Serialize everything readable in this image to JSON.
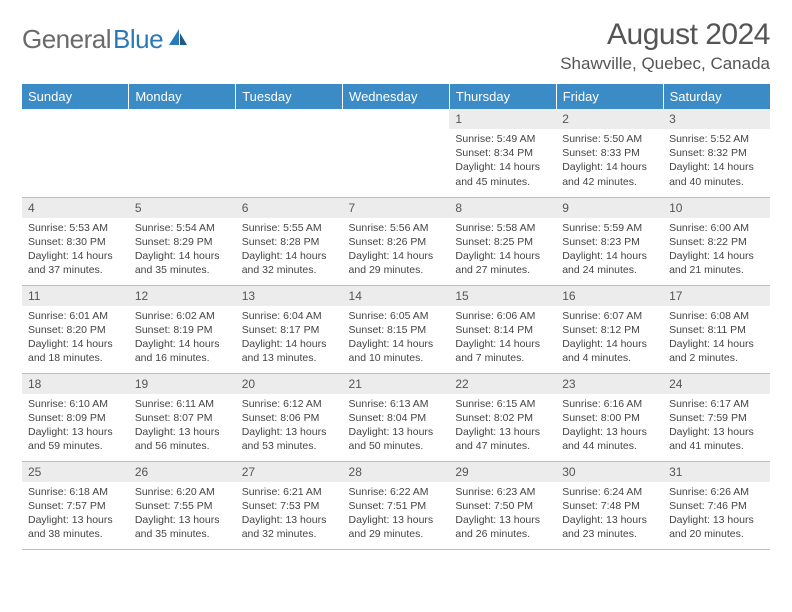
{
  "brand": {
    "name_gray": "General",
    "name_blue": "Blue"
  },
  "title": "August 2024",
  "location": "Shawville, Quebec, Canada",
  "colors": {
    "header_bg": "#3b8bc7",
    "header_text": "#ffffff",
    "daynum_bg": "#ececec",
    "body_text": "#444444",
    "title_text": "#555555",
    "logo_gray": "#6a6a6a",
    "logo_blue": "#2a7ab9",
    "row_border": "#bfbfbf"
  },
  "weekdays": [
    "Sunday",
    "Monday",
    "Tuesday",
    "Wednesday",
    "Thursday",
    "Friday",
    "Saturday"
  ],
  "weeks": [
    [
      {
        "day": "",
        "sunrise": "",
        "sunset": "",
        "daylight": ""
      },
      {
        "day": "",
        "sunrise": "",
        "sunset": "",
        "daylight": ""
      },
      {
        "day": "",
        "sunrise": "",
        "sunset": "",
        "daylight": ""
      },
      {
        "day": "",
        "sunrise": "",
        "sunset": "",
        "daylight": ""
      },
      {
        "day": "1",
        "sunrise": "Sunrise: 5:49 AM",
        "sunset": "Sunset: 8:34 PM",
        "daylight": "Daylight: 14 hours and 45 minutes."
      },
      {
        "day": "2",
        "sunrise": "Sunrise: 5:50 AM",
        "sunset": "Sunset: 8:33 PM",
        "daylight": "Daylight: 14 hours and 42 minutes."
      },
      {
        "day": "3",
        "sunrise": "Sunrise: 5:52 AM",
        "sunset": "Sunset: 8:32 PM",
        "daylight": "Daylight: 14 hours and 40 minutes."
      }
    ],
    [
      {
        "day": "4",
        "sunrise": "Sunrise: 5:53 AM",
        "sunset": "Sunset: 8:30 PM",
        "daylight": "Daylight: 14 hours and 37 minutes."
      },
      {
        "day": "5",
        "sunrise": "Sunrise: 5:54 AM",
        "sunset": "Sunset: 8:29 PM",
        "daylight": "Daylight: 14 hours and 35 minutes."
      },
      {
        "day": "6",
        "sunrise": "Sunrise: 5:55 AM",
        "sunset": "Sunset: 8:28 PM",
        "daylight": "Daylight: 14 hours and 32 minutes."
      },
      {
        "day": "7",
        "sunrise": "Sunrise: 5:56 AM",
        "sunset": "Sunset: 8:26 PM",
        "daylight": "Daylight: 14 hours and 29 minutes."
      },
      {
        "day": "8",
        "sunrise": "Sunrise: 5:58 AM",
        "sunset": "Sunset: 8:25 PM",
        "daylight": "Daylight: 14 hours and 27 minutes."
      },
      {
        "day": "9",
        "sunrise": "Sunrise: 5:59 AM",
        "sunset": "Sunset: 8:23 PM",
        "daylight": "Daylight: 14 hours and 24 minutes."
      },
      {
        "day": "10",
        "sunrise": "Sunrise: 6:00 AM",
        "sunset": "Sunset: 8:22 PM",
        "daylight": "Daylight: 14 hours and 21 minutes."
      }
    ],
    [
      {
        "day": "11",
        "sunrise": "Sunrise: 6:01 AM",
        "sunset": "Sunset: 8:20 PM",
        "daylight": "Daylight: 14 hours and 18 minutes."
      },
      {
        "day": "12",
        "sunrise": "Sunrise: 6:02 AM",
        "sunset": "Sunset: 8:19 PM",
        "daylight": "Daylight: 14 hours and 16 minutes."
      },
      {
        "day": "13",
        "sunrise": "Sunrise: 6:04 AM",
        "sunset": "Sunset: 8:17 PM",
        "daylight": "Daylight: 14 hours and 13 minutes."
      },
      {
        "day": "14",
        "sunrise": "Sunrise: 6:05 AM",
        "sunset": "Sunset: 8:15 PM",
        "daylight": "Daylight: 14 hours and 10 minutes."
      },
      {
        "day": "15",
        "sunrise": "Sunrise: 6:06 AM",
        "sunset": "Sunset: 8:14 PM",
        "daylight": "Daylight: 14 hours and 7 minutes."
      },
      {
        "day": "16",
        "sunrise": "Sunrise: 6:07 AM",
        "sunset": "Sunset: 8:12 PM",
        "daylight": "Daylight: 14 hours and 4 minutes."
      },
      {
        "day": "17",
        "sunrise": "Sunrise: 6:08 AM",
        "sunset": "Sunset: 8:11 PM",
        "daylight": "Daylight: 14 hours and 2 minutes."
      }
    ],
    [
      {
        "day": "18",
        "sunrise": "Sunrise: 6:10 AM",
        "sunset": "Sunset: 8:09 PM",
        "daylight": "Daylight: 13 hours and 59 minutes."
      },
      {
        "day": "19",
        "sunrise": "Sunrise: 6:11 AM",
        "sunset": "Sunset: 8:07 PM",
        "daylight": "Daylight: 13 hours and 56 minutes."
      },
      {
        "day": "20",
        "sunrise": "Sunrise: 6:12 AM",
        "sunset": "Sunset: 8:06 PM",
        "daylight": "Daylight: 13 hours and 53 minutes."
      },
      {
        "day": "21",
        "sunrise": "Sunrise: 6:13 AM",
        "sunset": "Sunset: 8:04 PM",
        "daylight": "Daylight: 13 hours and 50 minutes."
      },
      {
        "day": "22",
        "sunrise": "Sunrise: 6:15 AM",
        "sunset": "Sunset: 8:02 PM",
        "daylight": "Daylight: 13 hours and 47 minutes."
      },
      {
        "day": "23",
        "sunrise": "Sunrise: 6:16 AM",
        "sunset": "Sunset: 8:00 PM",
        "daylight": "Daylight: 13 hours and 44 minutes."
      },
      {
        "day": "24",
        "sunrise": "Sunrise: 6:17 AM",
        "sunset": "Sunset: 7:59 PM",
        "daylight": "Daylight: 13 hours and 41 minutes."
      }
    ],
    [
      {
        "day": "25",
        "sunrise": "Sunrise: 6:18 AM",
        "sunset": "Sunset: 7:57 PM",
        "daylight": "Daylight: 13 hours and 38 minutes."
      },
      {
        "day": "26",
        "sunrise": "Sunrise: 6:20 AM",
        "sunset": "Sunset: 7:55 PM",
        "daylight": "Daylight: 13 hours and 35 minutes."
      },
      {
        "day": "27",
        "sunrise": "Sunrise: 6:21 AM",
        "sunset": "Sunset: 7:53 PM",
        "daylight": "Daylight: 13 hours and 32 minutes."
      },
      {
        "day": "28",
        "sunrise": "Sunrise: 6:22 AM",
        "sunset": "Sunset: 7:51 PM",
        "daylight": "Daylight: 13 hours and 29 minutes."
      },
      {
        "day": "29",
        "sunrise": "Sunrise: 6:23 AM",
        "sunset": "Sunset: 7:50 PM",
        "daylight": "Daylight: 13 hours and 26 minutes."
      },
      {
        "day": "30",
        "sunrise": "Sunrise: 6:24 AM",
        "sunset": "Sunset: 7:48 PM",
        "daylight": "Daylight: 13 hours and 23 minutes."
      },
      {
        "day": "31",
        "sunrise": "Sunrise: 6:26 AM",
        "sunset": "Sunset: 7:46 PM",
        "daylight": "Daylight: 13 hours and 20 minutes."
      }
    ]
  ]
}
